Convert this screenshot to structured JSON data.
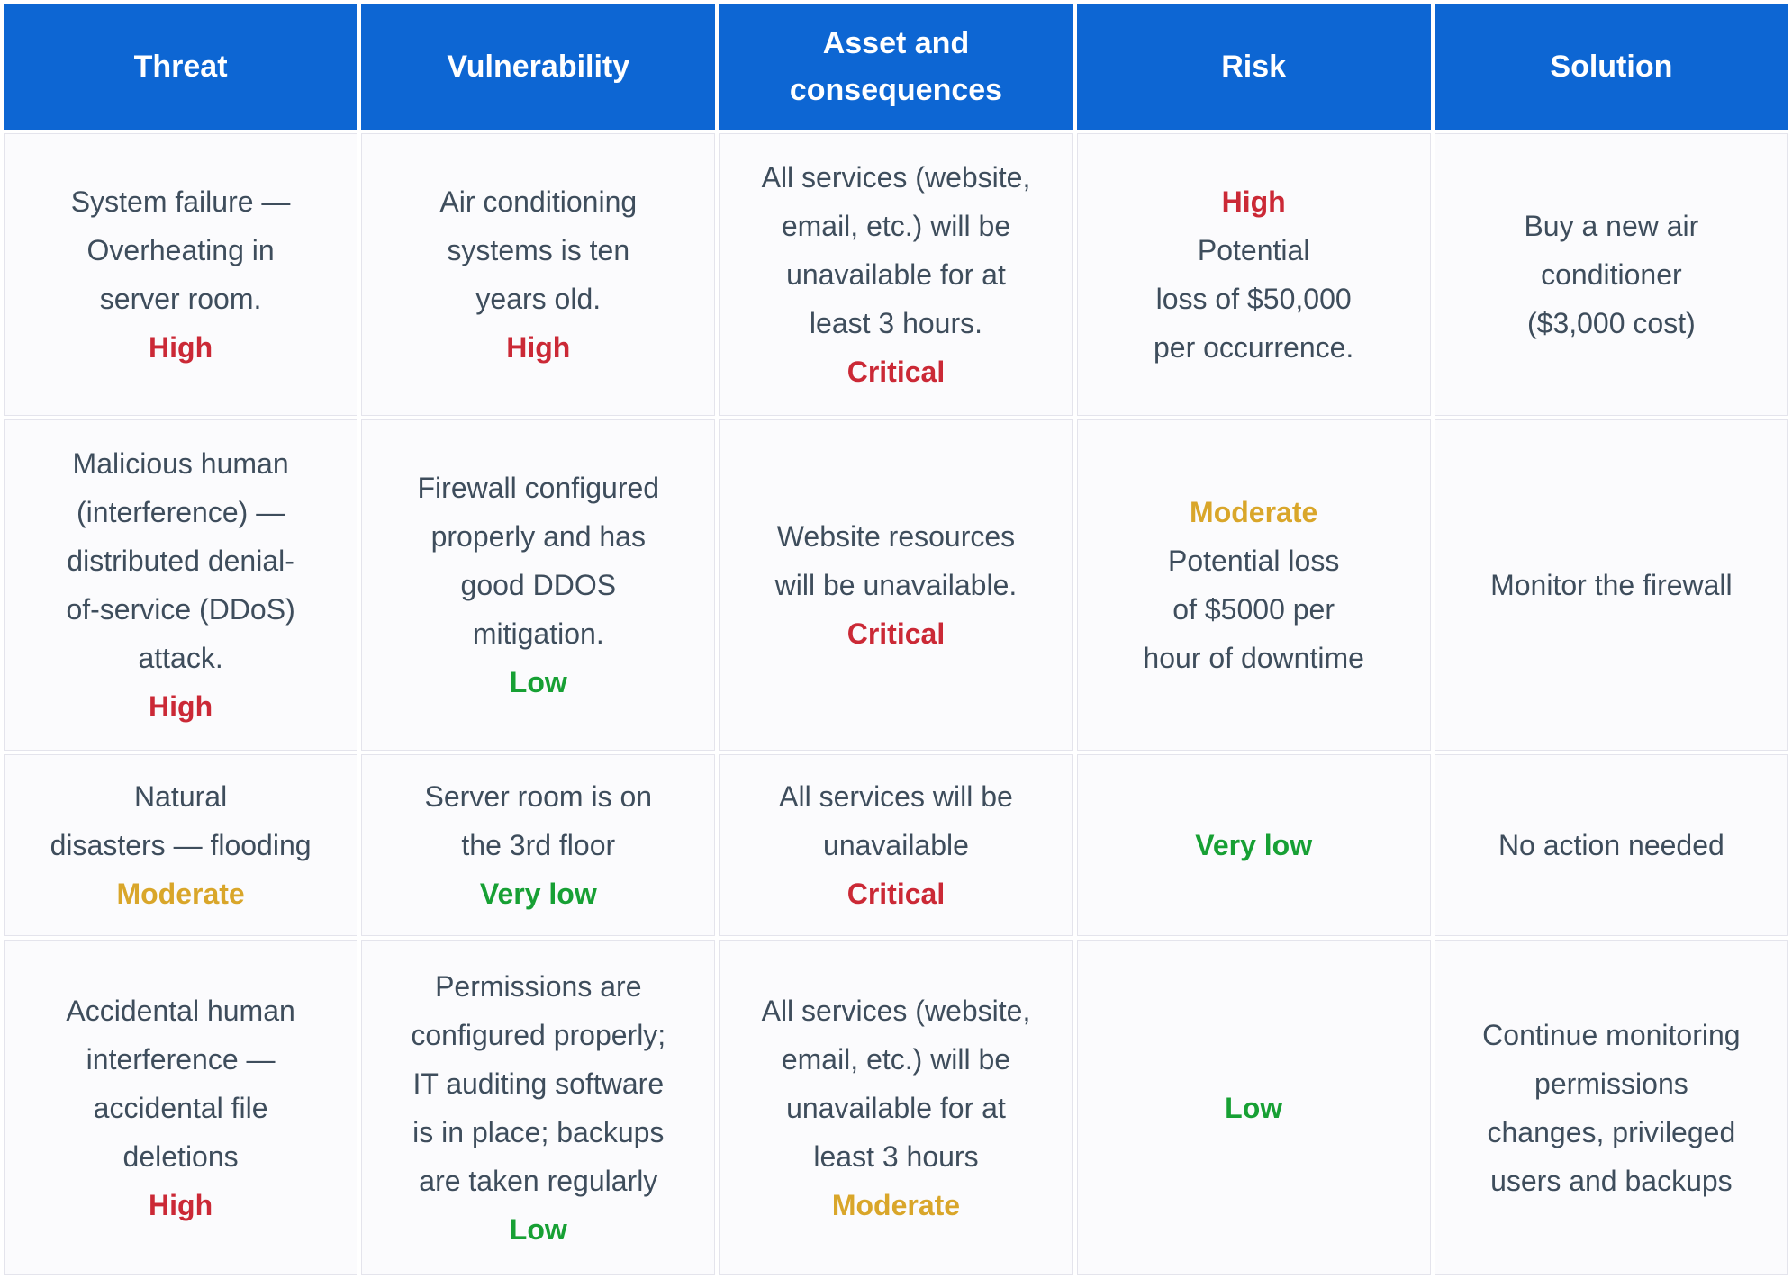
{
  "colors": {
    "header-bg": "#0d66d3",
    "header-text": "#ffffff",
    "body-text": "#3e4d5c",
    "cell-bg": "#fbfbfd",
    "cell-border": "#e4e4ec",
    "page-bg": "#ffffff",
    "red": "#cb2936",
    "gold": "#d9a62a",
    "green": "#17a034"
  },
  "header": {
    "columns": [
      "Threat",
      "Vulnerability",
      "Asset and\nconsequences",
      "Risk",
      "Solution"
    ]
  },
  "rows": [
    {
      "cells": [
        {
          "text": "System failure —\nOverheating in\nserver room.",
          "badge": "High",
          "badge_color": "red"
        },
        {
          "text": "Air conditioning\nsystems is ten\nyears old.",
          "badge": "High",
          "badge_color": "red"
        },
        {
          "text": "All services (website,\nemail, etc.) will be\nunavailable for at\nleast 3 hours.",
          "badge": "Critical",
          "badge_color": "red"
        },
        {
          "badge": "High",
          "badge_color": "red",
          "text": "Potential\nloss of $50,000\nper occurrence."
        },
        {
          "text": "Buy a new air\nconditioner\n($3,000 cost)"
        }
      ]
    },
    {
      "cells": [
        {
          "text": "Malicious human\n(interference) —\ndistributed denial-\nof-service (DDoS)\nattack.",
          "badge": "High",
          "badge_color": "red"
        },
        {
          "text": "Firewall configured\nproperly and has\ngood DDOS\nmitigation.",
          "badge": "Low",
          "badge_color": "green"
        },
        {
          "text": "Website resources\nwill be unavailable.",
          "badge": "Critical",
          "badge_color": "red"
        },
        {
          "badge": "Moderate",
          "badge_color": "gold",
          "text": "Potential loss\nof $5000 per\nhour of downtime"
        },
        {
          "text": "Monitor the firewall"
        }
      ]
    },
    {
      "cells": [
        {
          "text": "Natural\ndisasters — flooding",
          "badge": "Moderate",
          "badge_color": "gold"
        },
        {
          "text": "Server room is on\nthe 3rd floor",
          "badge": "Very low",
          "badge_color": "green"
        },
        {
          "text": "All services will be\nunavailable",
          "badge": "Critical",
          "badge_color": "red"
        },
        {
          "badge": "Very low",
          "badge_color": "green",
          "text": ""
        },
        {
          "text": "No action needed"
        }
      ]
    },
    {
      "cells": [
        {
          "text": "Accidental human\ninterference —\naccidental file\ndeletions",
          "badge": "High",
          "badge_color": "red"
        },
        {
          "text": "Permissions are\nconfigured properly;\nIT auditing software\nis in place; backups\nare taken regularly",
          "badge": "Low",
          "badge_color": "green"
        },
        {
          "text": "All services (website,\nemail, etc.) will be\nunavailable for at\nleast 3 hours",
          "badge": "Moderate",
          "badge_color": "gold"
        },
        {
          "badge": "Low",
          "badge_color": "green",
          "text": ""
        },
        {
          "text": "Continue monitoring\npermissions\nchanges, privileged\nusers and backups"
        }
      ]
    }
  ]
}
